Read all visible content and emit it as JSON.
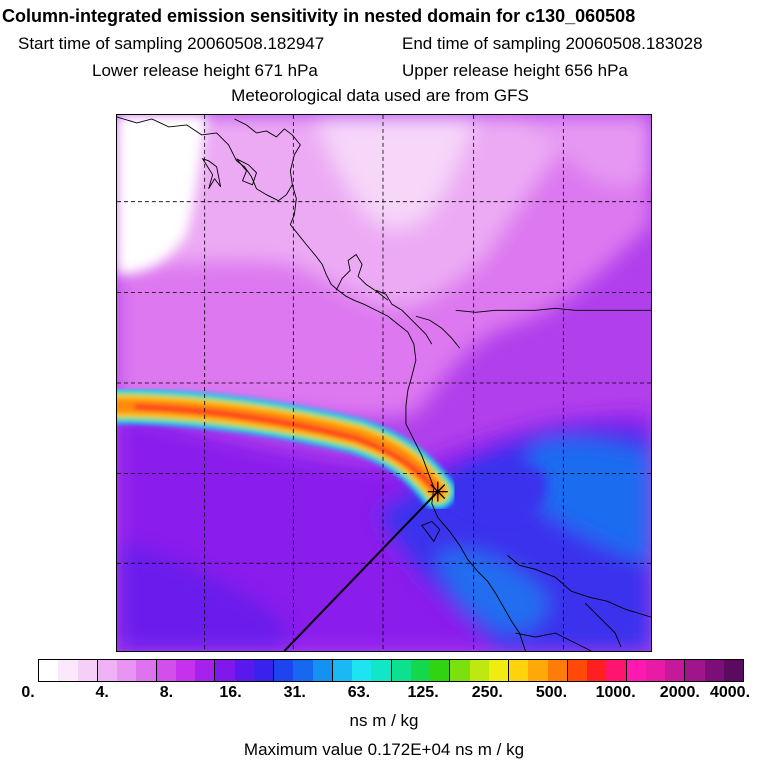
{
  "title": "Column-integrated emission sensitivity in nested domain for c130_060508",
  "sampling": {
    "start": "Start time of sampling 20060508.182947",
    "end": "End time of sampling 20060508.183028"
  },
  "release": {
    "lower": "Lower release height  671 hPa",
    "upper": "Upper release height  656 hPa"
  },
  "meteorology": "Meteorological data used are from GFS",
  "colorbar": {
    "colors": [
      "#ffffff",
      "#fbe8fb",
      "#f6cff8",
      "#efb2f5",
      "#e794f2",
      "#dd73ee",
      "#d24fec",
      "#c531ec",
      "#a622ec",
      "#8018ec",
      "#5b18ec",
      "#3a22ec",
      "#1e44ee",
      "#1768f0",
      "#1591f2",
      "#1ab8f4",
      "#1ee4f2",
      "#11e6c6",
      "#0de08f",
      "#13d84c",
      "#30d412",
      "#7ae00e",
      "#bde810",
      "#f0ec10",
      "#ffd20e",
      "#ffa80a",
      "#ff7c08",
      "#ff4a0a",
      "#ff1f20",
      "#ff1470",
      "#ff18b2",
      "#e81aa6",
      "#c5189a",
      "#a0148c",
      "#7c0e7a",
      "#5c0a60"
    ],
    "tick_labels": [
      "0.",
      "4.",
      "8.",
      "16.",
      "31.",
      "63.",
      "125.",
      "250.",
      "500.",
      "1000.",
      "2000.",
      "4000."
    ],
    "units": "ns m / kg"
  },
  "maximum": "Maximum value  0.172E+04 ns m / kg",
  "map": {
    "release_site_symbol": "star"
  }
}
